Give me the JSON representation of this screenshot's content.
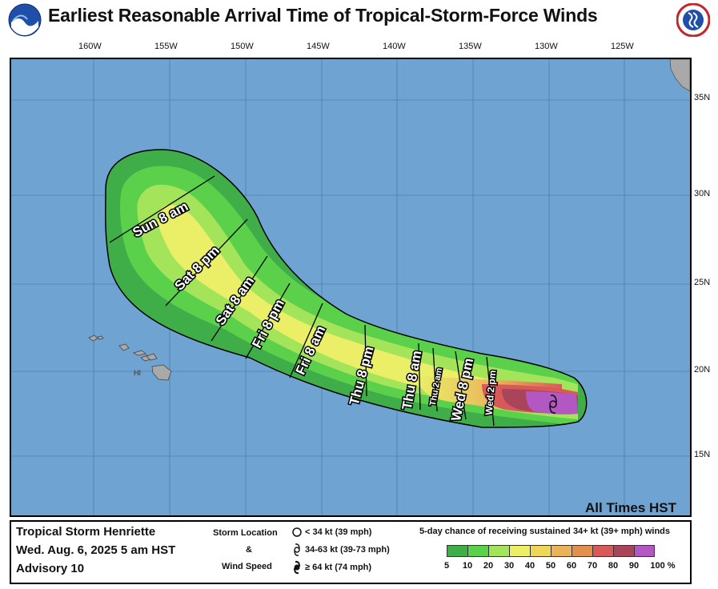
{
  "title": "Earliest Reasonable Arrival Time of Tropical-Storm-Force Winds",
  "logos": {
    "left": "NOAA",
    "right": "NATIONAL WEATHER SERVICE"
  },
  "map": {
    "longitude_labels": [
      "160W",
      "155W",
      "150W",
      "145W",
      "140W",
      "135W",
      "130W",
      "125W"
    ],
    "latitude_labels": [
      "35N",
      "30N",
      "25N",
      "20N",
      "15N"
    ],
    "island_label": "HI",
    "time_zone_note": "All Times HST",
    "arrival_labels": [
      "Sun 8 am",
      "Sat 8 pm",
      "Sat 8 am",
      "Fri 8 pm",
      "Fri 8 am",
      "Thu 8 pm",
      "Thu 8 am",
      "Thu 2 am",
      "Wed 8 pm",
      "Wed 2 pm"
    ],
    "colors": {
      "ocean": "#6fa3d2",
      "land": "#a9a9a9"
    },
    "storm_marker": "tropical-storm"
  },
  "legend": {
    "storm_name": "Tropical Storm Henriette",
    "issue_time": "Wed. Aug. 6, 2025  5 am HST",
    "advisory": "Advisory 10",
    "symbol_title_1": "Storm Location",
    "symbol_title_2": "&",
    "symbol_title_3": "Wind Speed",
    "symbols": [
      {
        "text": "< 34 kt (39 mph)",
        "icon": "low-icon"
      },
      {
        "text": "34-63 kt (39-73 mph)",
        "icon": "tropical-storm-icon"
      },
      {
        "text": "≥ 64 kt (74 mph)",
        "icon": "hurricane-icon"
      }
    ],
    "probability_title": "5-day chance of receiving sustained 34+ kt (39+ mph) winds",
    "scale_labels": [
      "5",
      "10",
      "20",
      "30",
      "40",
      "50",
      "60",
      "70",
      "80",
      "90",
      "100 %"
    ],
    "scale_colors": [
      "#3fae49",
      "#5bd14b",
      "#a3e45a",
      "#eaef67",
      "#eed65a",
      "#eab35a",
      "#e3904f",
      "#d9595a",
      "#a9445a",
      "#b358c2"
    ]
  }
}
